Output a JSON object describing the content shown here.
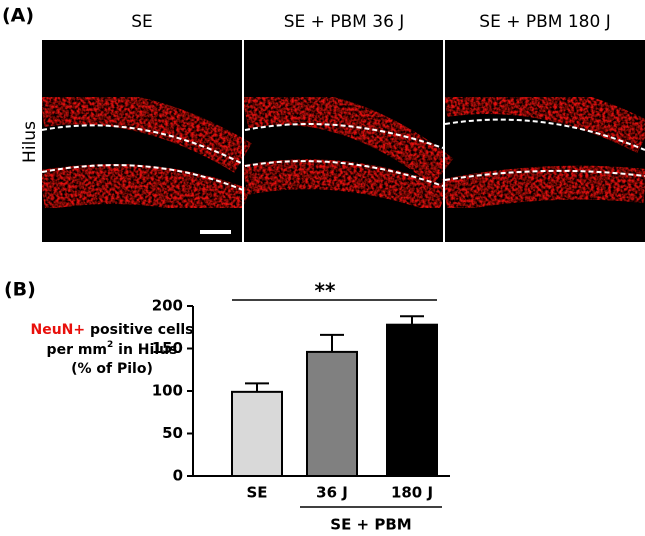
{
  "panel_a": {
    "panel_label": "(A)",
    "columns": [
      "SE",
      "SE + PBM 36 J",
      "SE + PBM 180 J"
    ],
    "row_label": "Hilus"
  },
  "chart_data": {
    "type": "bar",
    "panel_label": "(B)",
    "ylabel": [
      "NeuN+",
      "positive cells",
      "per mm",
      "2",
      "in Hilus",
      "(% of Pilo)"
    ],
    "categories": [
      "SE",
      "36 J",
      "180 J"
    ],
    "group_label": "SE + PBM",
    "values": [
      99,
      146,
      178
    ],
    "errors": [
      10,
      20,
      10
    ],
    "colors": [
      "#d9d9d9",
      "#808080",
      "#000000"
    ],
    "significance": "**",
    "ylim": [
      0,
      200
    ],
    "yticks": [
      0,
      50,
      100,
      150,
      200
    ]
  }
}
